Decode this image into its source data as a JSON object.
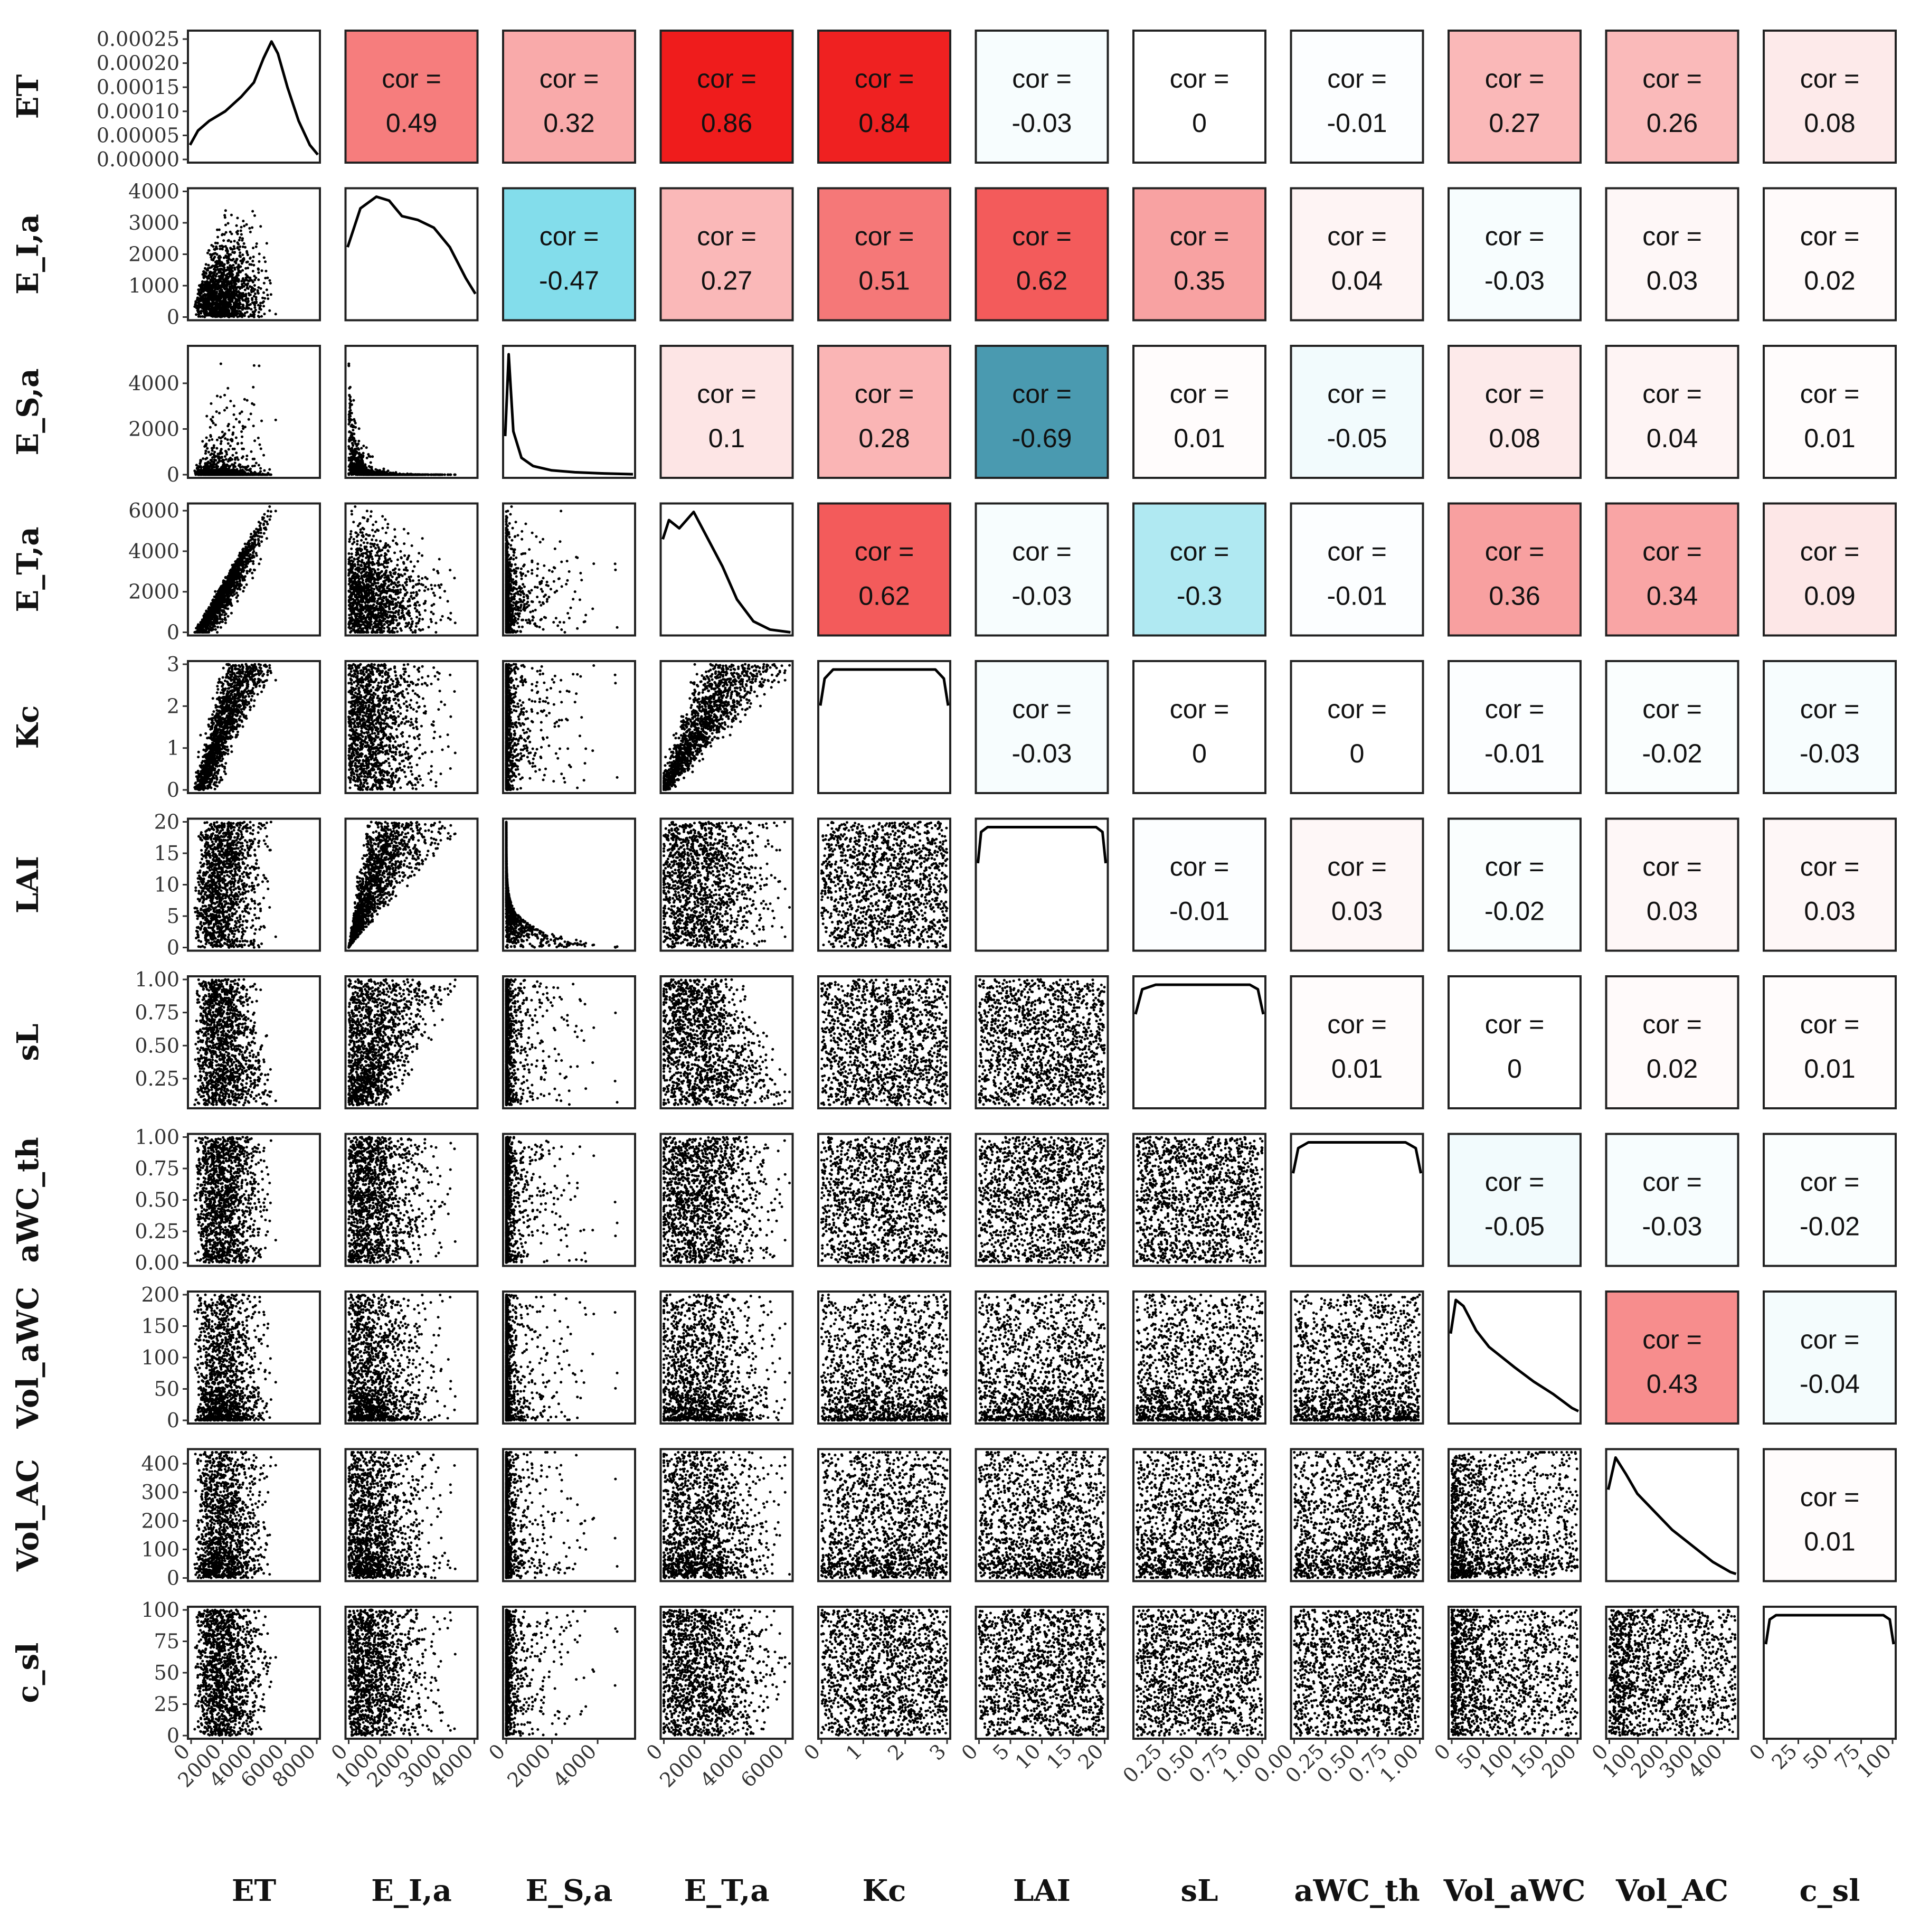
{
  "chart_data": {
    "type": "scatter-matrix",
    "title": "",
    "variables": [
      "ET",
      "E_I,a",
      "E_S,a",
      "E_T,a",
      "Kc",
      "LAI",
      "sL",
      "aWC_th",
      "Vol_aWC",
      "Vol_AC",
      "c_sl"
    ],
    "correlation_prefix": "cor =",
    "correlations": [
      [
        null,
        0.49,
        0.32,
        0.86,
        0.84,
        -0.03,
        0,
        -0.01,
        0.27,
        0.26,
        0.08
      ],
      [
        null,
        null,
        -0.47,
        0.27,
        0.51,
        0.62,
        0.35,
        0.04,
        -0.03,
        0.03,
        0.02
      ],
      [
        null,
        null,
        null,
        0.1,
        0.28,
        -0.69,
        0.01,
        -0.05,
        0.08,
        0.04,
        0.01
      ],
      [
        null,
        null,
        null,
        null,
        0.62,
        -0.03,
        -0.3,
        -0.01,
        0.36,
        0.34,
        0.09
      ],
      [
        null,
        null,
        null,
        null,
        null,
        -0.03,
        0,
        0,
        -0.01,
        -0.02,
        -0.03
      ],
      [
        null,
        null,
        null,
        null,
        null,
        null,
        -0.01,
        0.03,
        -0.02,
        0.03,
        0.03
      ],
      [
        null,
        null,
        null,
        null,
        null,
        null,
        null,
        0.01,
        0,
        0.02,
        0.01
      ],
      [
        null,
        null,
        null,
        null,
        null,
        null,
        null,
        null,
        -0.05,
        -0.03,
        -0.02
      ],
      [
        null,
        null,
        null,
        null,
        null,
        null,
        null,
        null,
        null,
        0.43,
        -0.04
      ],
      [
        null,
        null,
        null,
        null,
        null,
        null,
        null,
        null,
        null,
        null,
        0.01
      ],
      [
        null,
        null,
        null,
        null,
        null,
        null,
        null,
        null,
        null,
        null,
        null
      ]
    ],
    "ranges": [
      [
        0,
        8000
      ],
      [
        0,
        4000
      ],
      [
        0,
        5500
      ],
      [
        0,
        6200
      ],
      [
        0,
        3
      ],
      [
        0,
        20
      ],
      [
        0.05,
        1.0
      ],
      [
        0,
        1.0
      ],
      [
        0,
        200
      ],
      [
        0,
        440
      ],
      [
        0,
        100
      ]
    ],
    "x_ticks": [
      [
        "0",
        "2000",
        "4000",
        "6000",
        "8000"
      ],
      [
        "0",
        "1000",
        "2000",
        "3000",
        "4000"
      ],
      [
        "0",
        "2000",
        "4000"
      ],
      [
        "0",
        "2000",
        "4000",
        "6000"
      ],
      [
        "0",
        "1",
        "2",
        "3"
      ],
      [
        "0",
        "5",
        "10",
        "15",
        "20"
      ],
      [
        "0.25",
        "0.50",
        "0.75",
        "1.00"
      ],
      [
        "0.00",
        "0.25",
        "0.50",
        "0.75",
        "1.00"
      ],
      [
        "0",
        "50",
        "100",
        "150",
        "200"
      ],
      [
        "0",
        "100",
        "200",
        "300",
        "400"
      ],
      [
        "0",
        "25",
        "50",
        "75",
        "100"
      ]
    ],
    "y_ticks": [
      [
        "0.00000",
        "0.00005",
        "0.00010",
        "0.00015",
        "0.00020",
        "0.00025"
      ],
      [
        "0",
        "1000",
        "2000",
        "3000",
        "4000"
      ],
      [
        "0",
        "2000",
        "4000"
      ],
      [
        "0",
        "2000",
        "4000",
        "6000"
      ],
      [
        "0",
        "1",
        "2",
        "3"
      ],
      [
        "0",
        "5",
        "10",
        "15",
        "20"
      ],
      [
        "0.25",
        "0.50",
        "0.75",
        "1.00"
      ],
      [
        "0.00",
        "0.25",
        "0.50",
        "0.75",
        "1.00"
      ],
      [
        "0",
        "50",
        "100",
        "150",
        "200"
      ],
      [
        "0",
        "100",
        "200",
        "300",
        "400"
      ],
      [
        "0",
        "25",
        "50",
        "75",
        "100"
      ]
    ],
    "density_range": [
      0,
      0.00025
    ],
    "densities": {
      "ET": [
        [
          0,
          3e-05
        ],
        [
          500,
          6e-05
        ],
        [
          1200,
          8e-05
        ],
        [
          2200,
          0.0001
        ],
        [
          3200,
          0.00013
        ],
        [
          4000,
          0.00016
        ],
        [
          4600,
          0.00021
        ],
        [
          5100,
          0.000245
        ],
        [
          5500,
          0.00022
        ],
        [
          6100,
          0.00015
        ],
        [
          6800,
          8e-05
        ],
        [
          7500,
          3e-05
        ],
        [
          8000,
          1e-05
        ]
      ],
      "E_I,a": [
        [
          0,
          0.00018
        ],
        [
          400,
          0.00028
        ],
        [
          900,
          0.00031
        ],
        [
          1300,
          0.0003
        ],
        [
          1700,
          0.00026
        ],
        [
          2200,
          0.00025
        ],
        [
          2700,
          0.00023
        ],
        [
          3200,
          0.00018
        ],
        [
          3700,
          0.0001
        ],
        [
          4000,
          6e-05
        ]
      ],
      "E_S,a": [
        [
          0,
          0.0008
        ],
        [
          150,
          0.0025
        ],
        [
          350,
          0.0009
        ],
        [
          700,
          0.00035
        ],
        [
          1200,
          0.00018
        ],
        [
          2000,
          9e-05
        ],
        [
          3000,
          5e-05
        ],
        [
          4000,
          3e-05
        ],
        [
          5500,
          1e-05
        ]
      ],
      "E_T,a": [
        [
          0,
          0.00034
        ],
        [
          300,
          0.00041
        ],
        [
          800,
          0.00038
        ],
        [
          1500,
          0.00044
        ],
        [
          2200,
          0.00034
        ],
        [
          2900,
          0.00024
        ],
        [
          3600,
          0.00012
        ],
        [
          4400,
          4e-05
        ],
        [
          5200,
          1e-05
        ],
        [
          6200,
          0.0
        ]
      ],
      "Kc": [
        [
          0,
          0.28
        ],
        [
          0.1,
          0.37
        ],
        [
          0.3,
          0.4
        ],
        [
          2.7,
          0.4
        ],
        [
          2.9,
          0.37
        ],
        [
          3.0,
          0.28
        ]
      ],
      "LAI": [
        [
          0,
          0.035
        ],
        [
          0.5,
          0.048
        ],
        [
          1.5,
          0.05
        ],
        [
          18.5,
          0.05
        ],
        [
          19.5,
          0.048
        ],
        [
          20,
          0.035
        ]
      ],
      "sL": [
        [
          0.05,
          0.8
        ],
        [
          0.1,
          1.02
        ],
        [
          0.2,
          1.06
        ],
        [
          0.9,
          1.06
        ],
        [
          0.96,
          1.02
        ],
        [
          1.0,
          0.8
        ]
      ],
      "aWC_th": [
        [
          0,
          0.78
        ],
        [
          0.04,
          1.0
        ],
        [
          0.12,
          1.05
        ],
        [
          0.88,
          1.05
        ],
        [
          0.96,
          1.0
        ],
        [
          1.0,
          0.78
        ]
      ],
      "Vol_aWC": [
        [
          0,
          0.0085
        ],
        [
          8,
          0.0118
        ],
        [
          20,
          0.0112
        ],
        [
          40,
          0.0088
        ],
        [
          60,
          0.0072
        ],
        [
          80,
          0.0062
        ],
        [
          100,
          0.0052
        ],
        [
          130,
          0.0038
        ],
        [
          160,
          0.0026
        ],
        [
          190,
          0.0012
        ],
        [
          200,
          0.0009
        ]
      ],
      "Vol_AC": [
        [
          0,
          0.0044
        ],
        [
          25,
          0.006
        ],
        [
          60,
          0.0052
        ],
        [
          100,
          0.0042
        ],
        [
          160,
          0.0033
        ],
        [
          220,
          0.0024
        ],
        [
          290,
          0.0016
        ],
        [
          360,
          0.0008
        ],
        [
          420,
          0.0003
        ],
        [
          440,
          0.0002
        ]
      ],
      "c_sl": [
        [
          0,
          0.0085
        ],
        [
          3,
          0.0108
        ],
        [
          8,
          0.0112
        ],
        [
          92,
          0.0112
        ],
        [
          97,
          0.0108
        ],
        [
          100,
          0.0085
        ]
      ]
    }
  },
  "colors": {
    "positive": "#ee1111",
    "negative": "#4a9ab0",
    "negative_light": "#7fd8e8",
    "points": "#000000",
    "frame": "#222222"
  }
}
